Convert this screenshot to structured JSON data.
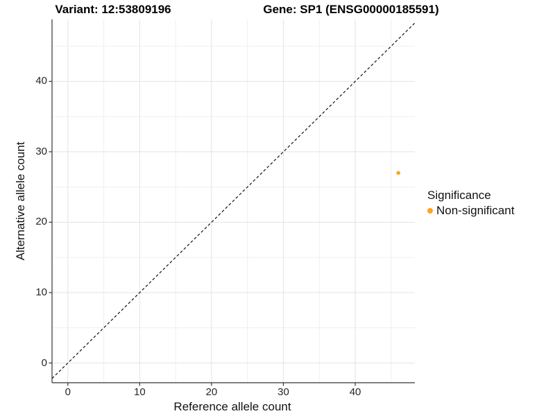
{
  "chart_data": {
    "type": "scatter",
    "title_left": "Variant: 12:53809196",
    "title_right": "Gene: SP1 (ENSG00000185591)",
    "xlabel": "Reference allele count",
    "ylabel": "Alternative allele count",
    "xlim": [
      -2.2,
      48.3
    ],
    "ylim": [
      -2.8,
      48.8
    ],
    "xticks": [
      0,
      10,
      20,
      30,
      40
    ],
    "yticks": [
      0,
      10,
      20,
      30,
      40
    ],
    "minor_grid_step": 5,
    "grid": true,
    "legend_position": "right",
    "points": [
      {
        "x": 46,
        "y": 27,
        "series": "Non-significant"
      }
    ],
    "abline": {
      "slope": 1,
      "intercept": 0,
      "style": "dashed"
    },
    "legend": {
      "title": "Significance",
      "items": [
        {
          "label": "Non-significant",
          "color": "#FFA21E"
        }
      ]
    }
  },
  "colors": {
    "point": "#FFA21E",
    "grid_major": "#E3E3E3",
    "grid_minor": "#EFEFEF",
    "axis_line": "#333333",
    "abline": "#111111",
    "background": "#FFFFFF"
  }
}
